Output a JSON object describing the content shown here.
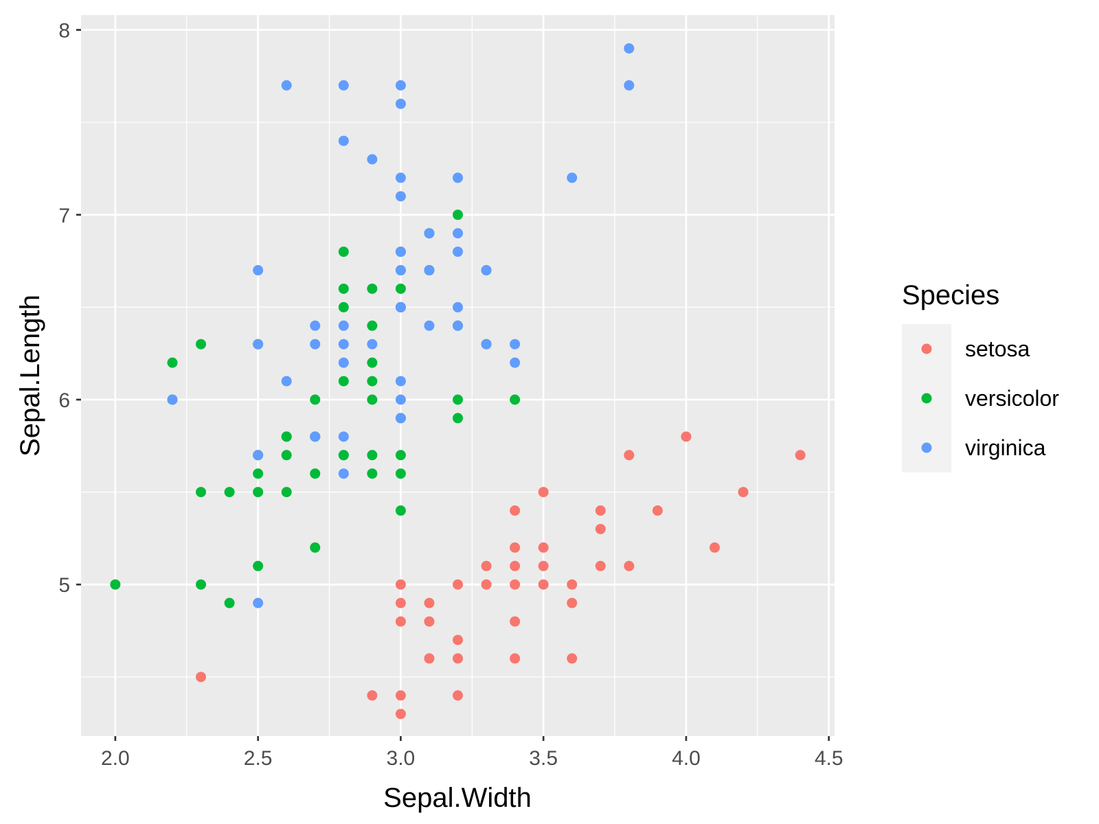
{
  "chart_data": {
    "type": "scatter",
    "title": "",
    "xlabel": "Sepal.Width",
    "ylabel": "Sepal.Length",
    "xlim": [
      1.88,
      4.52
    ],
    "ylim": [
      4.18,
      8.08
    ],
    "xticks": [
      2.0,
      2.5,
      3.0,
      3.5,
      4.0,
      4.5
    ],
    "xtick_labels": [
      "2.0",
      "2.5",
      "3.0",
      "3.5",
      "4.0",
      "4.5"
    ],
    "yticks": [
      5,
      6,
      7,
      8
    ],
    "ytick_labels": [
      "5",
      "6",
      "7",
      "8"
    ],
    "grid": true,
    "legend": {
      "title": "Species",
      "placement": "right"
    },
    "series": [
      {
        "name": "setosa",
        "color": "#F8766D",
        "points": [
          [
            3.5,
            5.1
          ],
          [
            3.0,
            4.9
          ],
          [
            3.2,
            4.7
          ],
          [
            3.1,
            4.6
          ],
          [
            3.6,
            5.0
          ],
          [
            3.9,
            5.4
          ],
          [
            3.4,
            4.6
          ],
          [
            3.4,
            5.0
          ],
          [
            2.9,
            4.4
          ],
          [
            3.1,
            4.9
          ],
          [
            3.7,
            5.4
          ],
          [
            3.4,
            4.8
          ],
          [
            3.0,
            4.8
          ],
          [
            3.0,
            4.3
          ],
          [
            4.0,
            5.8
          ],
          [
            4.4,
            5.7
          ],
          [
            3.8,
            5.1
          ],
          [
            3.8,
            5.7
          ],
          [
            3.4,
            5.4
          ],
          [
            3.7,
            5.1
          ],
          [
            3.6,
            4.6
          ],
          [
            3.3,
            5.1
          ],
          [
            3.4,
            5.2
          ],
          [
            3.5,
            5.2
          ],
          [
            3.5,
            5.0
          ],
          [
            3.2,
            5.0
          ],
          [
            4.1,
            5.2
          ],
          [
            4.2,
            5.5
          ],
          [
            3.1,
            4.8
          ],
          [
            3.5,
            5.5
          ],
          [
            3.0,
            4.4
          ],
          [
            3.4,
            5.1
          ],
          [
            2.3,
            4.5
          ],
          [
            3.2,
            4.4
          ],
          [
            3.0,
            5.0
          ],
          [
            3.3,
            5.0
          ],
          [
            3.7,
            5.3
          ],
          [
            3.6,
            4.9
          ],
          [
            3.2,
            4.6
          ]
        ]
      },
      {
        "name": "versicolor",
        "color": "#00BA38",
        "points": [
          [
            3.2,
            7.0
          ],
          [
            3.2,
            6.4
          ],
          [
            3.1,
            6.9
          ],
          [
            2.3,
            5.5
          ],
          [
            2.8,
            6.5
          ],
          [
            2.8,
            5.7
          ],
          [
            3.3,
            6.3
          ],
          [
            2.4,
            4.9
          ],
          [
            2.9,
            6.6
          ],
          [
            2.7,
            5.2
          ],
          [
            2.0,
            5.0
          ],
          [
            3.0,
            5.9
          ],
          [
            2.2,
            6.0
          ],
          [
            2.9,
            6.1
          ],
          [
            2.9,
            5.6
          ],
          [
            3.1,
            6.7
          ],
          [
            3.0,
            5.6
          ],
          [
            2.7,
            5.8
          ],
          [
            2.2,
            6.2
          ],
          [
            2.5,
            5.6
          ],
          [
            3.2,
            5.9
          ],
          [
            2.8,
            6.1
          ],
          [
            2.5,
            6.3
          ],
          [
            2.8,
            6.6
          ],
          [
            3.0,
            6.8
          ],
          [
            2.6,
            5.7
          ],
          [
            2.4,
            5.5
          ],
          [
            3.4,
            6.0
          ],
          [
            3.0,
            5.4
          ],
          [
            3.1,
            6.7
          ],
          [
            2.3,
            6.3
          ],
          [
            2.5,
            5.5
          ],
          [
            2.6,
            5.5
          ],
          [
            2.6,
            5.8
          ],
          [
            2.3,
            5.0
          ],
          [
            2.7,
            5.6
          ],
          [
            3.0,
            5.7
          ],
          [
            2.9,
            5.7
          ],
          [
            2.9,
            6.2
          ],
          [
            2.5,
            5.1
          ],
          [
            2.8,
            5.7
          ],
          [
            3.0,
            6.6
          ],
          [
            2.8,
            6.8
          ],
          [
            2.7,
            6.0
          ],
          [
            2.9,
            6.4
          ],
          [
            2.9,
            6.0
          ],
          [
            3.0,
            6.7
          ],
          [
            3.2,
            6.0
          ],
          [
            2.6,
            5.8
          ],
          [
            2.5,
            5.7
          ]
        ]
      },
      {
        "name": "virginica",
        "color": "#619CFF",
        "points": [
          [
            3.3,
            6.3
          ],
          [
            2.7,
            5.8
          ],
          [
            3.0,
            7.1
          ],
          [
            2.9,
            6.3
          ],
          [
            3.0,
            6.5
          ],
          [
            3.0,
            7.6
          ],
          [
            2.5,
            4.9
          ],
          [
            2.9,
            7.3
          ],
          [
            2.5,
            6.7
          ],
          [
            3.6,
            7.2
          ],
          [
            3.2,
            6.5
          ],
          [
            2.7,
            6.4
          ],
          [
            3.0,
            6.8
          ],
          [
            2.5,
            5.7
          ],
          [
            2.8,
            5.8
          ],
          [
            3.2,
            6.4
          ],
          [
            3.0,
            6.5
          ],
          [
            3.8,
            7.7
          ],
          [
            2.6,
            7.7
          ],
          [
            2.2,
            6.0
          ],
          [
            3.2,
            6.9
          ],
          [
            2.8,
            5.6
          ],
          [
            2.8,
            7.7
          ],
          [
            2.7,
            6.3
          ],
          [
            3.3,
            6.7
          ],
          [
            3.2,
            7.2
          ],
          [
            2.8,
            6.2
          ],
          [
            3.0,
            6.1
          ],
          [
            2.8,
            6.4
          ],
          [
            3.0,
            7.2
          ],
          [
            2.8,
            7.4
          ],
          [
            3.8,
            7.9
          ],
          [
            2.8,
            6.3
          ],
          [
            2.6,
            6.1
          ],
          [
            3.0,
            7.7
          ],
          [
            3.4,
            6.3
          ],
          [
            3.1,
            6.4
          ],
          [
            3.0,
            6.0
          ],
          [
            3.1,
            6.9
          ],
          [
            3.1,
            6.7
          ],
          [
            2.7,
            5.8
          ],
          [
            3.2,
            6.8
          ],
          [
            3.3,
            6.7
          ],
          [
            3.0,
            6.7
          ],
          [
            2.5,
            6.3
          ],
          [
            3.0,
            6.5
          ],
          [
            3.4,
            6.2
          ],
          [
            3.0,
            5.9
          ]
        ]
      }
    ]
  }
}
